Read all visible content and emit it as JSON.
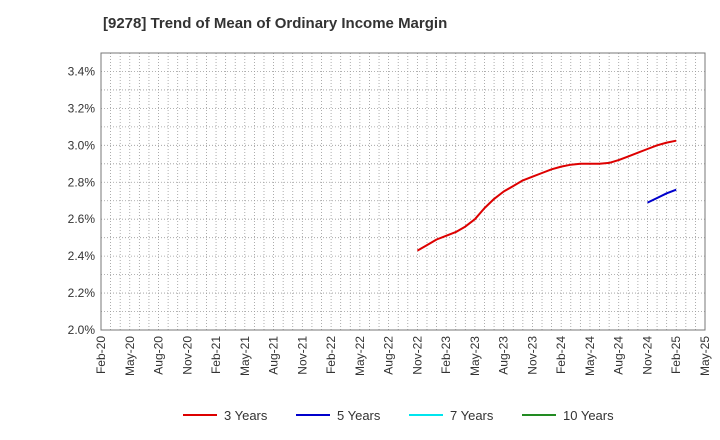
{
  "chart_data": {
    "type": "line",
    "title": "[9278]  Trend of Mean of Ordinary Income Margin",
    "xlabel": "",
    "ylabel": "",
    "x_ticks": [
      "Feb-20",
      "May-20",
      "Aug-20",
      "Nov-20",
      "Feb-21",
      "May-21",
      "Aug-21",
      "Nov-21",
      "Feb-22",
      "May-22",
      "Aug-22",
      "Nov-22",
      "Feb-23",
      "May-23",
      "Aug-23",
      "Nov-23",
      "Feb-24",
      "May-24",
      "Aug-24",
      "Nov-24",
      "Feb-25",
      "May-25"
    ],
    "y_ticks": [
      "2.0%",
      "2.2%",
      "2.4%",
      "2.6%",
      "2.8%",
      "3.0%",
      "3.2%",
      "3.4%"
    ],
    "ylim": [
      2.0,
      3.5
    ],
    "grid": true,
    "legend_position": "bottom",
    "series": [
      {
        "name": "3 Years",
        "color": "#dd0000",
        "x": [
          "Nov-22",
          "Dec-22",
          "Jan-23",
          "Feb-23",
          "Mar-23",
          "Apr-23",
          "May-23",
          "Jun-23",
          "Jul-23",
          "Aug-23",
          "Sep-23",
          "Oct-23",
          "Nov-23",
          "Dec-23",
          "Jan-24",
          "Feb-24",
          "Mar-24",
          "Apr-24",
          "May-24",
          "Jun-24",
          "Jul-24",
          "Aug-24",
          "Sep-24",
          "Oct-24",
          "Nov-24",
          "Dec-24",
          "Jan-25",
          "Feb-25"
        ],
        "values": [
          2.43,
          2.46,
          2.49,
          2.51,
          2.53,
          2.56,
          2.6,
          2.66,
          2.71,
          2.75,
          2.78,
          2.81,
          2.83,
          2.85,
          2.87,
          2.885,
          2.895,
          2.9,
          2.9,
          2.9,
          2.905,
          2.92,
          2.94,
          2.96,
          2.98,
          3.0,
          3.015,
          3.025
        ]
      },
      {
        "name": "5 Years",
        "color": "#0000cc",
        "x": [
          "Nov-24",
          "Dec-24",
          "Jan-25",
          "Feb-25"
        ],
        "values": [
          2.69,
          2.715,
          2.74,
          2.76
        ]
      },
      {
        "name": "7 Years",
        "color": "#00e5ee",
        "x": [],
        "values": []
      },
      {
        "name": "10 Years",
        "color": "#228b22",
        "x": [],
        "values": []
      }
    ]
  }
}
